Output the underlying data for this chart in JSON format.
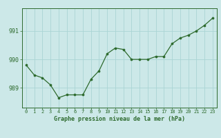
{
  "x": [
    0,
    1,
    2,
    3,
    4,
    5,
    6,
    7,
    8,
    9,
    10,
    11,
    12,
    13,
    14,
    15,
    16,
    17,
    18,
    19,
    20,
    21,
    22,
    23
  ],
  "y": [
    989.8,
    989.45,
    989.35,
    989.1,
    988.65,
    988.75,
    988.75,
    988.75,
    989.3,
    989.6,
    990.2,
    990.4,
    990.35,
    990.0,
    990.0,
    990.0,
    990.1,
    990.1,
    990.55,
    990.75,
    990.85,
    991.0,
    991.2,
    991.45
  ],
  "line_color": "#2d6a2d",
  "marker_color": "#2d6a2d",
  "bg_color": "#cce8e8",
  "grid_color": "#aad4d4",
  "axis_color": "#2d6a2d",
  "ylabel_ticks": [
    989,
    990,
    991
  ],
  "xlabel_ticks": [
    0,
    1,
    2,
    3,
    4,
    5,
    6,
    7,
    8,
    9,
    10,
    11,
    12,
    13,
    14,
    15,
    16,
    17,
    18,
    19,
    20,
    21,
    22,
    23
  ],
  "xlabel": "Graphe pression niveau de la mer (hPa)",
  "ylim": [
    988.3,
    991.8
  ],
  "xlim": [
    -0.5,
    23.5
  ]
}
